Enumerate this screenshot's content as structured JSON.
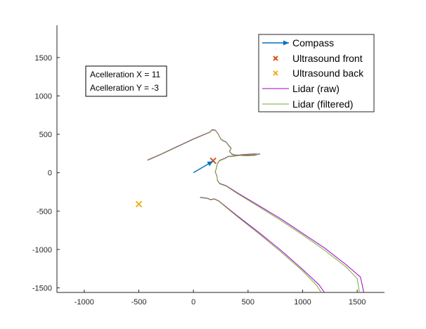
{
  "chart_data": {
    "type": "line",
    "xlim": [
      -1250,
      1750
    ],
    "ylim": [
      -1560,
      1920
    ],
    "x_ticks": [
      -1000,
      -500,
      0,
      500,
      1000,
      1500
    ],
    "y_ticks": [
      -1500,
      -1000,
      -500,
      0,
      500,
      1000,
      1500
    ],
    "x_tick_labels": [
      "-1000",
      "-500",
      "0",
      "500",
      "1000",
      "1500"
    ],
    "y_tick_labels": [
      "-1500",
      "-1000",
      "-500",
      "0",
      "500",
      "1000",
      "1500"
    ],
    "grid": false,
    "legend_position": "top-right",
    "legend": [
      "Compass",
      "Ultrasound front",
      "Ultrasound back",
      "Lidar (raw)",
      "Lidar (filtered)"
    ],
    "annotation_lines": [
      "Acelleration X = 11",
      "Acelleration Y = -3"
    ],
    "compass": {
      "from": [
        0,
        0
      ],
      "to": [
        180,
        150
      ],
      "color": "#0072BD"
    },
    "ultrasound_front": {
      "x": 180,
      "y": 155,
      "color": "#D95319"
    },
    "ultrasound_back": {
      "x": -500,
      "y": -410,
      "color": "#EDB120"
    },
    "lidar_raw": {
      "color": "#A000C8",
      "segments": [
        [
          [
            -420,
            165
          ],
          [
            -300,
            240
          ],
          [
            -150,
            340
          ],
          [
            0,
            440
          ],
          [
            150,
            530
          ],
          [
            170,
            560
          ],
          [
            200,
            555
          ],
          [
            225,
            510
          ],
          [
            250,
            440
          ],
          [
            270,
            420
          ],
          [
            300,
            400
          ],
          [
            320,
            360
          ],
          [
            345,
            320
          ],
          [
            330,
            280
          ],
          [
            350,
            245
          ],
          [
            380,
            230
          ],
          [
            420,
            230
          ],
          [
            460,
            225
          ],
          [
            510,
            225
          ],
          [
            560,
            230
          ],
          [
            600,
            245
          ],
          [
            610,
            240
          ],
          [
            560,
            245
          ],
          [
            500,
            240
          ],
          [
            440,
            235
          ],
          [
            400,
            225
          ],
          [
            350,
            215
          ],
          [
            320,
            215
          ],
          [
            290,
            190
          ],
          [
            240,
            160
          ],
          [
            220,
            120
          ],
          [
            210,
            60
          ],
          [
            200,
            10
          ],
          [
            215,
            -40
          ],
          [
            220,
            -100
          ],
          [
            240,
            -140
          ],
          [
            300,
            -170
          ],
          [
            400,
            -260
          ],
          [
            600,
            -430
          ],
          [
            800,
            -600
          ],
          [
            1000,
            -790
          ],
          [
            1200,
            -980
          ],
          [
            1400,
            -1200
          ],
          [
            1530,
            -1360
          ],
          [
            1560,
            -1560
          ]
        ],
        [
          [
            60,
            -320
          ],
          [
            120,
            -330
          ],
          [
            160,
            -350
          ],
          [
            190,
            -340
          ],
          [
            230,
            -365
          ],
          [
            400,
            -560
          ],
          [
            600,
            -780
          ],
          [
            800,
            -1010
          ],
          [
            1000,
            -1260
          ],
          [
            1150,
            -1460
          ],
          [
            1200,
            -1560
          ]
        ]
      ]
    },
    "lidar_filtered": {
      "color": "#77AC30",
      "segments": [
        [
          [
            -420,
            160
          ],
          [
            -300,
            235
          ],
          [
            -150,
            335
          ],
          [
            0,
            435
          ],
          [
            150,
            525
          ],
          [
            170,
            555
          ],
          [
            200,
            550
          ],
          [
            225,
            505
          ],
          [
            250,
            435
          ],
          [
            270,
            415
          ],
          [
            300,
            395
          ],
          [
            320,
            355
          ],
          [
            345,
            315
          ],
          [
            330,
            275
          ],
          [
            350,
            240
          ],
          [
            380,
            225
          ],
          [
            420,
            225
          ],
          [
            460,
            220
          ],
          [
            510,
            220
          ],
          [
            560,
            225
          ],
          [
            600,
            240
          ],
          [
            560,
            240
          ],
          [
            500,
            235
          ],
          [
            440,
            230
          ],
          [
            400,
            220
          ],
          [
            350,
            210
          ],
          [
            320,
            210
          ],
          [
            290,
            185
          ],
          [
            240,
            155
          ],
          [
            220,
            115
          ],
          [
            210,
            55
          ],
          [
            200,
            5
          ],
          [
            215,
            -45
          ],
          [
            220,
            -105
          ],
          [
            240,
            -145
          ],
          [
            300,
            -175
          ],
          [
            400,
            -270
          ],
          [
            600,
            -445
          ],
          [
            800,
            -620
          ],
          [
            1000,
            -810
          ],
          [
            1200,
            -1010
          ],
          [
            1400,
            -1230
          ],
          [
            1500,
            -1380
          ],
          [
            1520,
            -1560
          ]
        ],
        [
          [
            60,
            -325
          ],
          [
            120,
            -335
          ],
          [
            160,
            -355
          ],
          [
            190,
            -345
          ],
          [
            230,
            -370
          ],
          [
            400,
            -570
          ],
          [
            600,
            -795
          ],
          [
            800,
            -1030
          ],
          [
            1000,
            -1280
          ],
          [
            1130,
            -1470
          ],
          [
            1170,
            -1560
          ]
        ]
      ]
    }
  }
}
